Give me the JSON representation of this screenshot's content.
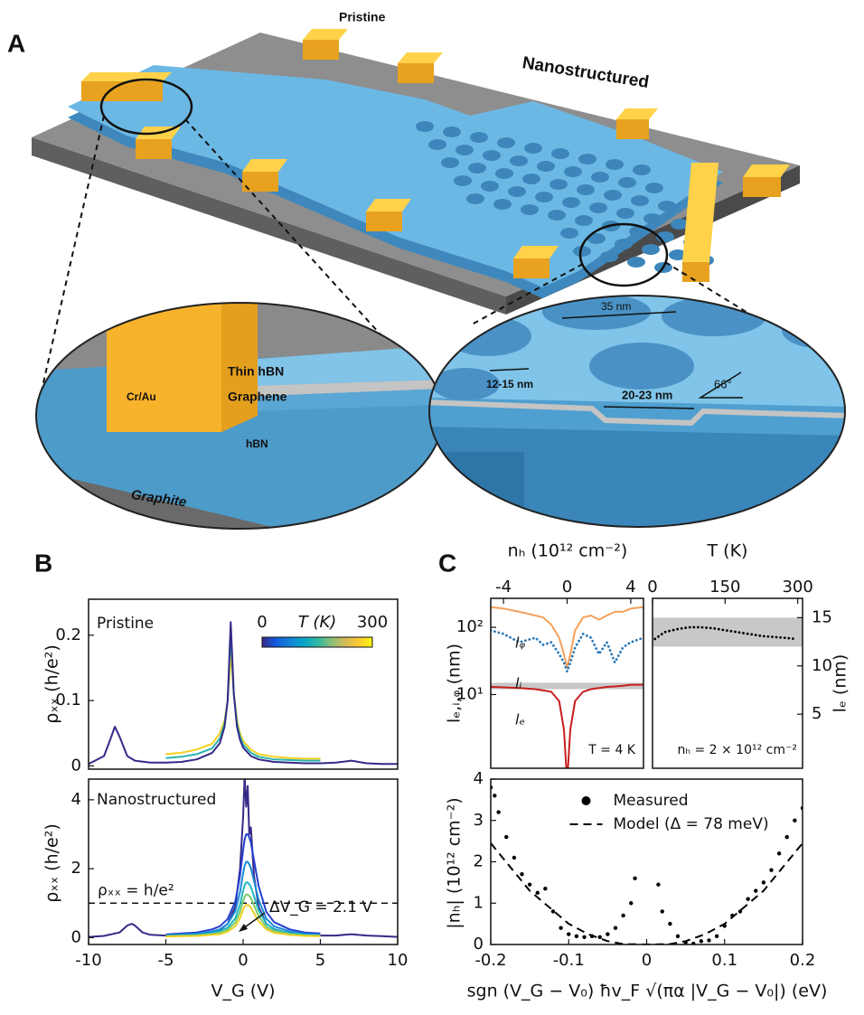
{
  "panels": {
    "a": "A",
    "b": "B",
    "c": "C"
  },
  "diagram": {
    "pristine": "Pristine",
    "nanostructured": "Nanostructured",
    "cr_au": "Cr/Au",
    "thin_hbn": "Thin hBN",
    "graphene": "Graphene",
    "hbn": "hBN",
    "graphite": "Graphite",
    "pitch": "35 nm",
    "neck": "12-15 nm",
    "hole": "20-23 nm",
    "angle": "66°"
  },
  "chart_data": [
    {
      "type": "line",
      "ylabel": "ρₓₓ (h/e²)",
      "annotations": [
        "Pristine"
      ],
      "xlim": [
        -10,
        10
      ],
      "ylim": [
        -0.005,
        0.255
      ],
      "yticks": [
        0,
        0.1,
        0.2
      ],
      "xaxis": "bottom",
      "yaxis": "left",
      "colorbar": {
        "label": "T (K)",
        "ticks": [
          0,
          300
        ],
        "colors": [
          "#352a87",
          "#0f5cdd",
          "#1481d6",
          "#06a4ca",
          "#2eb7a4",
          "#87bf77",
          "#d1bb59",
          "#fec832",
          "#f9fb0e"
        ]
      },
      "x": [
        -10,
        -9,
        -8.6,
        -8.3,
        -8,
        -7.5,
        -7,
        -6,
        -5,
        -4,
        -3,
        -2,
        -1.5,
        -1.2,
        -1,
        -0.8,
        -0.6,
        -0.4,
        -0.2,
        0,
        0.5,
        1,
        2,
        3,
        4,
        5,
        6,
        7,
        8,
        9,
        10
      ],
      "series": [
        {
          "color": "#f5d020",
          "values": [
            null,
            null,
            null,
            null,
            null,
            null,
            null,
            null,
            0.018,
            0.02,
            0.025,
            0.034,
            0.05,
            0.07,
            0.1,
            0.17,
            0.11,
            0.07,
            0.05,
            0.038,
            0.025,
            0.018,
            0.014,
            0.012,
            0.011,
            0.011,
            null,
            null,
            null,
            null,
            null
          ]
        },
        {
          "color": "#2ab3b0",
          "values": [
            null,
            null,
            null,
            null,
            null,
            null,
            null,
            null,
            0.012,
            0.014,
            0.018,
            0.027,
            0.042,
            0.065,
            0.1,
            0.2,
            0.11,
            0.065,
            0.045,
            0.033,
            0.02,
            0.014,
            0.01,
            0.009,
            0.008,
            0.008,
            null,
            null,
            null,
            null,
            null
          ]
        },
        {
          "color": "#352a87",
          "values": [
            0.003,
            0.015,
            0.04,
            0.06,
            0.045,
            0.015,
            0.008,
            0.005,
            0.005,
            0.006,
            0.01,
            0.02,
            0.035,
            0.06,
            0.1,
            0.22,
            0.11,
            0.06,
            0.04,
            0.028,
            0.015,
            0.01,
            0.006,
            0.005,
            0.004,
            0.004,
            0.005,
            0.008,
            0.004,
            0.003,
            0.003
          ]
        }
      ]
    },
    {
      "type": "line",
      "xlabel": "V_G (V)",
      "ylabel": "ρₓₓ (h/e²)",
      "annotations": [
        "Nanostructured",
        "ΔV_G = 2.1 V"
      ],
      "xlim": [
        -10,
        10
      ],
      "ylim": [
        -0.2,
        4.6
      ],
      "xticks": [
        -10,
        -5,
        0,
        5,
        10
      ],
      "yticks": [
        0,
        2,
        4
      ],
      "xaxis": "bottom",
      "yaxis": "left",
      "hline": {
        "value": 1,
        "label": "ρₓₓ = h/e²"
      },
      "x": [
        -10,
        -9,
        -8,
        -7.5,
        -7.2,
        -7,
        -6.5,
        -6,
        -5,
        -4,
        -3,
        -2,
        -1.5,
        -1,
        -0.5,
        -0.2,
        0,
        0.1,
        0.2,
        0.3,
        0.4,
        0.5,
        0.7,
        1,
        1.5,
        2,
        3,
        4,
        5,
        6,
        7,
        8,
        9,
        10
      ],
      "series": [
        {
          "color": "#352a87",
          "values": [
            0.02,
            0.05,
            0.15,
            0.35,
            0.4,
            0.35,
            0.15,
            0.08,
            0.06,
            0.08,
            0.1,
            0.15,
            0.22,
            0.4,
            0.9,
            2.0,
            3.5,
            4.7,
            3.8,
            4.4,
            3.0,
            3.2,
            1.8,
            0.9,
            0.4,
            0.25,
            0.12,
            0.08,
            0.06,
            0.06,
            0.1,
            0.06,
            0.04,
            0.02
          ]
        },
        {
          "color": "#2440d0",
          "values": [
            null,
            null,
            null,
            null,
            null,
            null,
            null,
            null,
            0.09,
            0.12,
            0.15,
            0.24,
            0.33,
            0.54,
            1.05,
            1.8,
            2.55,
            2.85,
            3.0,
            3.0,
            2.91,
            2.76,
            2.25,
            1.5,
            0.75,
            0.45,
            0.24,
            0.15,
            0.12,
            null,
            null,
            null,
            null,
            null
          ]
        },
        {
          "color": "#1a8ad8",
          "values": [
            null,
            null,
            null,
            null,
            null,
            null,
            null,
            null,
            0.07,
            0.09,
            0.11,
            0.18,
            0.24,
            0.4,
            0.77,
            1.32,
            1.87,
            2.09,
            2.2,
            2.2,
            2.13,
            2.02,
            1.65,
            1.1,
            0.55,
            0.33,
            0.18,
            0.11,
            0.09,
            null,
            null,
            null,
            null,
            null
          ]
        },
        {
          "color": "#22b8c0",
          "values": [
            null,
            null,
            null,
            null,
            null,
            null,
            null,
            null,
            0.05,
            0.06,
            0.08,
            0.13,
            0.18,
            0.29,
            0.56,
            0.96,
            1.36,
            1.52,
            1.6,
            1.6,
            1.55,
            1.47,
            1.2,
            0.8,
            0.4,
            0.24,
            0.13,
            0.08,
            0.06,
            null,
            null,
            null,
            null,
            null
          ]
        },
        {
          "color": "#7ccb6a",
          "values": [
            null,
            null,
            null,
            null,
            null,
            null,
            null,
            null,
            0.04,
            0.05,
            0.06,
            0.1,
            0.14,
            0.23,
            0.44,
            0.75,
            1.06,
            1.19,
            1.25,
            1.25,
            1.21,
            1.15,
            0.94,
            0.63,
            0.31,
            0.19,
            0.1,
            0.06,
            0.05,
            null,
            null,
            null,
            null,
            null
          ]
        },
        {
          "color": "#f0d020",
          "values": [
            null,
            null,
            null,
            null,
            null,
            null,
            null,
            null,
            0.03,
            0.04,
            0.05,
            0.08,
            0.1,
            0.17,
            0.33,
            0.57,
            0.81,
            0.9,
            0.95,
            0.95,
            0.92,
            0.87,
            0.71,
            0.48,
            0.24,
            0.14,
            0.08,
            0.05,
            0.04,
            null,
            null,
            null,
            null,
            null
          ]
        }
      ]
    },
    {
      "type": "line",
      "xlabel": "nₕ (10¹² cm⁻²)",
      "ylabel": "lₑ,ᵢ,ᵩ (nm)",
      "annotations": [
        "T = 4 K"
      ],
      "xlim": [
        -4.8,
        4.8
      ],
      "ylim": [
        0.8,
        270
      ],
      "ylog": true,
      "xticks": [
        -4,
        0,
        4
      ],
      "yticks": [
        {
          "value": 10,
          "label": "10¹"
        },
        {
          "value": 100,
          "label": "10²"
        }
      ],
      "xaxis": "top",
      "yaxis": "left",
      "band": [
        12,
        15
      ],
      "x": [
        -4.8,
        -4,
        -3,
        -2,
        -1.5,
        -1,
        -0.5,
        -0.2,
        0,
        0.2,
        0.5,
        1,
        1.5,
        2,
        2.5,
        3,
        3.5,
        4,
        4.8
      ],
      "series": [
        {
          "name": "lᵩ",
          "color": "#f5a05a",
          "style": "solid",
          "values": [
            200,
            190,
            170,
            150,
            140,
            110,
            70,
            40,
            25,
            40,
            90,
            140,
            150,
            130,
            150,
            170,
            170,
            190,
            200
          ]
        },
        {
          "name": "lᵢ",
          "color": "#2a78b8",
          "style": "dotted",
          "values": [
            90,
            80,
            60,
            70,
            55,
            60,
            40,
            30,
            22,
            30,
            50,
            80,
            70,
            40,
            60,
            30,
            50,
            60,
            70
          ]
        },
        {
          "name": "lₑ",
          "color": "#c81e1e",
          "style": "solid",
          "values": [
            13,
            12.8,
            12.5,
            12,
            11.5,
            11,
            8,
            3,
            0.5,
            3,
            8,
            11,
            12,
            12.5,
            13,
            13.2,
            13.5,
            14,
            14
          ]
        }
      ]
    },
    {
      "type": "line",
      "xlabel": "T (K)",
      "ylabel": "lₑ (nm)",
      "annotations": [
        "nₕ = 2 × 10¹² cm⁻²"
      ],
      "xlim": [
        0,
        310
      ],
      "ylim": [
        -0.6,
        17
      ],
      "xticks": [
        0,
        150,
        300
      ],
      "yticks": [
        5,
        10,
        15
      ],
      "xaxis": "top",
      "yaxis": "right",
      "band": [
        12,
        15
      ],
      "x": [
        5,
        25,
        50,
        75,
        100,
        125,
        150,
        175,
        200,
        225,
        250,
        275,
        295
      ],
      "series": [
        {
          "color": "#000000",
          "style": "dotted",
          "values": [
            12.8,
            13.5,
            13.8,
            14,
            14,
            13.9,
            13.7,
            13.5,
            13.3,
            13.1,
            13,
            12.9,
            12.8
          ]
        }
      ]
    },
    {
      "type": "line",
      "xlabel": "sgn (V_G − V₀) ħv_F √(πα |V_G − V₀|) (eV)",
      "ylabel": "|nₕ| (10¹² cm⁻²)",
      "xlim": [
        -0.2,
        0.2
      ],
      "ylim": [
        0,
        4
      ],
      "xticks": [
        -0.2,
        -0.1,
        0,
        0.1,
        0.2
      ],
      "yticks": [
        0,
        1,
        2,
        3,
        4
      ],
      "xaxis": "bottom",
      "yaxis": "left",
      "legend": "upper center",
      "series": [
        {
          "name": "Measured",
          "color": "#000000",
          "style": "dots",
          "x": [
            -0.2,
            -0.195,
            -0.19,
            -0.18,
            -0.17,
            -0.16,
            -0.15,
            -0.14,
            -0.13,
            -0.12,
            -0.11,
            -0.1,
            -0.09,
            -0.08,
            -0.07,
            -0.06,
            -0.05,
            -0.04,
            -0.03,
            -0.02,
            -0.015,
            0.015,
            0.02,
            0.03,
            0.04,
            0.05,
            0.06,
            0.07,
            0.08,
            0.09,
            0.1,
            0.11,
            0.12,
            0.13,
            0.14,
            0.15,
            0.16,
            0.17,
            0.18,
            0.19,
            0.2
          ],
          "values": [
            3.8,
            3.6,
            3.2,
            2.6,
            2.1,
            1.7,
            1.45,
            1.25,
            1.35,
            0.8,
            0.4,
            0.25,
            0.2,
            0.18,
            0.2,
            0.18,
            0.25,
            0.4,
            0.7,
            1.0,
            1.6,
            1.45,
            0.8,
            0.5,
            0.2,
            0.05,
            0.02,
            0.08,
            0.1,
            0.2,
            0.45,
            0.7,
            0.8,
            1.1,
            1.3,
            1.5,
            1.8,
            2.2,
            2.6,
            3.0,
            3.3
          ]
        },
        {
          "name": "Model (Δ = 78 meV)",
          "color": "#000000",
          "style": "dashed",
          "x": [
            -0.2,
            -0.15,
            -0.1,
            -0.075,
            -0.05,
            -0.03,
            0,
            0.03,
            0.05,
            0.075,
            0.1,
            0.15,
            0.2
          ],
          "values": [
            2.45,
            1.3,
            0.5,
            0.25,
            0.08,
            0.01,
            0,
            0.01,
            0.08,
            0.25,
            0.5,
            1.3,
            2.45
          ]
        }
      ]
    }
  ]
}
